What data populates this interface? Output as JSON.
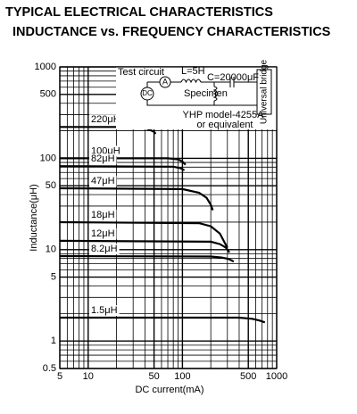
{
  "chart_data": {
    "type": "line",
    "title": "TYPICAL ELECTRICAL CHARACTERISTICS",
    "subtitle": "INDUCTANCE vs. FREQUENCY CHARACTERISTICS",
    "x_label": "DC current(mA)",
    "y_label": "Inductance(μH)",
    "log_x": true,
    "log_y": true,
    "grid": true,
    "xlim": [
      5,
      1000
    ],
    "ylim": [
      0.5,
      1000
    ],
    "xticks": [
      5,
      10,
      50,
      100,
      500,
      1000
    ],
    "yticks": [
      0.5,
      1,
      5,
      10,
      50,
      100,
      500,
      1000
    ],
    "minor_xticks": [
      6,
      7,
      8,
      9,
      20,
      30,
      40,
      60,
      70,
      80,
      90,
      200,
      300,
      400,
      600,
      700,
      800,
      900
    ],
    "minor_yticks": [
      0.6,
      0.7,
      0.8,
      0.9,
      2,
      3,
      4,
      6,
      7,
      8,
      9,
      20,
      30,
      40,
      60,
      70,
      80,
      90,
      200,
      300,
      400,
      600,
      700,
      800,
      900
    ],
    "series": [
      {
        "name": "220μH",
        "color": "#000000",
        "x": [
          5,
          30,
          40,
          45,
          50,
          52
        ],
        "values": [
          220,
          220,
          215,
          205,
          195,
          185
        ]
      },
      {
        "name": "100μH",
        "color": "#000000",
        "x": [
          5,
          70,
          90,
          100,
          108
        ],
        "values": [
          100,
          100,
          97,
          92,
          85
        ]
      },
      {
        "name": "82μH",
        "color": "#000000",
        "x": [
          5,
          80,
          95,
          105
        ],
        "values": [
          82,
          81,
          78,
          74
        ]
      },
      {
        "name": "47μH",
        "color": "#000000",
        "x": [
          5,
          100,
          150,
          180,
          200,
          210
        ],
        "values": [
          47,
          46,
          42,
          37,
          31,
          27
        ]
      },
      {
        "name": "18μH",
        "color": "#000000",
        "x": [
          5,
          150,
          200,
          250,
          280,
          300
        ],
        "values": [
          20,
          19.5,
          18,
          15,
          12,
          10.5
        ]
      },
      {
        "name": "12μH",
        "color": "#000000",
        "x": [
          5,
          200,
          250,
          290,
          315
        ],
        "values": [
          12.5,
          12.2,
          11.5,
          10.5,
          9.3
        ]
      },
      {
        "name": "8.2μH",
        "color": "#000000",
        "x": [
          5,
          200,
          260,
          310,
          350
        ],
        "values": [
          8.5,
          8.4,
          8.2,
          7.9,
          7.4
        ]
      },
      {
        "name": "1.5μH",
        "color": "#000000",
        "x": [
          5,
          400,
          550,
          650,
          750
        ],
        "values": [
          1.8,
          1.8,
          1.75,
          1.68,
          1.6
        ]
      }
    ],
    "test_circuit": {
      "title": "Test circuit",
      "inductor": "L=5H",
      "capacitor": "C=20000μF",
      "source": "DC",
      "meter": "A",
      "specimen": "Specimen",
      "bridge": "Universal bridge",
      "model": "YHP model-4255A",
      "model_note": "or equivalent"
    }
  }
}
